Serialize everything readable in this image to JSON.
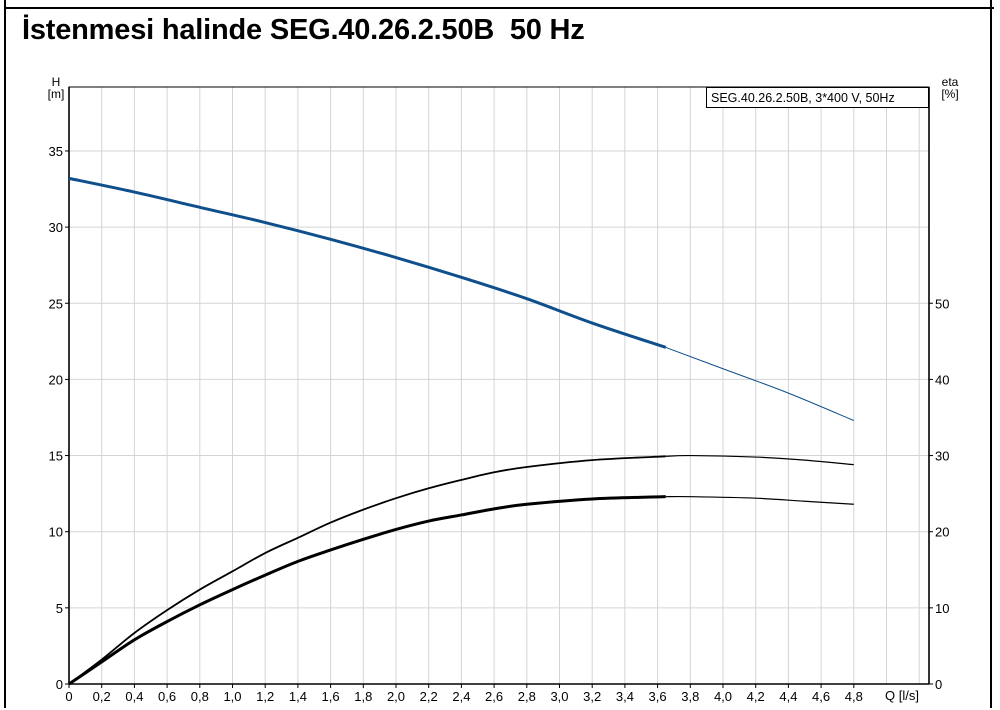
{
  "title": "İstenmesi halinde SEG.40.26.2.50B  50 Hz",
  "chart_data": {
    "type": "line",
    "title": "İstenmesi halinde SEG.40.26.2.50B  50 Hz",
    "legend": "SEG.40.26.2.50B, 3*400 V, 50Hz",
    "legend_placement": "top-right",
    "xlabel": "Q [l/s]",
    "ylabel_left": {
      "name": "H",
      "unit": "[m]"
    },
    "ylabel_right": {
      "name": "eta",
      "unit": "[%]"
    },
    "xlim": [
      0,
      5.26
    ],
    "ylim_left": [
      0,
      39
    ],
    "ylim_right": [
      0,
      78
    ],
    "x_ticks": [
      "0",
      "0,2",
      "0,4",
      "0,6",
      "0,8",
      "1,0",
      "1,2",
      "1,4",
      "1,6",
      "1,8",
      "2,0",
      "2,2",
      "2,4",
      "2,6",
      "2,8",
      "3,0",
      "3,2",
      "3,4",
      "3,6",
      "3,8",
      "4,0",
      "4,2",
      "4,4",
      "4,6",
      "4,8"
    ],
    "y_ticks_left": [
      0,
      5,
      10,
      15,
      20,
      25,
      30,
      35
    ],
    "y_ticks_right": [
      0,
      10,
      20,
      30,
      40,
      50
    ],
    "grid": true,
    "operating_limit_q": 3.65,
    "series": [
      {
        "name": "H",
        "axis": "left",
        "color": "#0f4f8c",
        "x": [
          0,
          0.4,
          0.8,
          1.2,
          1.6,
          2.0,
          2.4,
          2.8,
          3.2,
          3.65,
          4.0,
          4.4,
          4.8
        ],
        "y": [
          33.2,
          32.3,
          31.3,
          30.3,
          29.2,
          28.0,
          26.7,
          25.3,
          23.7,
          22.1,
          20.7,
          19.1,
          17.3
        ]
      },
      {
        "name": "eta upper",
        "axis": "right",
        "color": "#000000",
        "x": [
          0,
          0.2,
          0.4,
          0.6,
          0.8,
          1.0,
          1.2,
          1.4,
          1.6,
          1.8,
          2.0,
          2.2,
          2.4,
          2.6,
          2.8,
          3.2,
          3.65,
          3.8,
          4.2,
          4.5,
          4.8
        ],
        "y": [
          0,
          3.2,
          6.7,
          9.7,
          12.4,
          14.8,
          17.2,
          19.2,
          21.2,
          22.9,
          24.4,
          25.7,
          26.8,
          27.8,
          28.5,
          29.4,
          29.9,
          30.0,
          29.8,
          29.4,
          28.8
        ]
      },
      {
        "name": "eta lower",
        "axis": "right",
        "color": "#000000",
        "x": [
          0,
          0.2,
          0.4,
          0.6,
          0.8,
          1.0,
          1.2,
          1.4,
          1.6,
          1.8,
          2.0,
          2.2,
          2.4,
          2.6,
          2.8,
          3.2,
          3.65,
          3.8,
          4.2,
          4.5,
          4.8
        ],
        "y": [
          0,
          2.9,
          5.8,
          8.2,
          10.4,
          12.4,
          14.3,
          16.1,
          17.6,
          19.0,
          20.3,
          21.4,
          22.2,
          23.0,
          23.6,
          24.3,
          24.6,
          24.6,
          24.4,
          24.0,
          23.6
        ]
      }
    ]
  }
}
